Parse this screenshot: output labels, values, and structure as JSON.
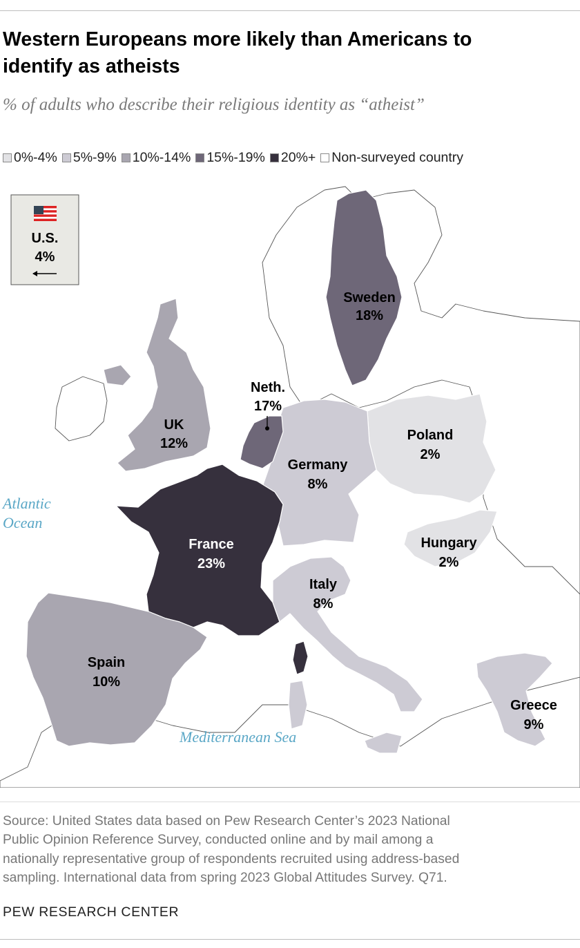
{
  "title_lines": [
    "Western Europeans more likely than Americans to",
    "identify as atheists"
  ],
  "subtitle": "% of adults who describe their religious identity as “atheist”",
  "legend": [
    {
      "label": "0%-4%",
      "color": "#e2e2e5"
    },
    {
      "label": "5%-9%",
      "color": "#cdcbd4"
    },
    {
      "label": "10%-14%",
      "color": "#a9a6b0"
    },
    {
      "label": "15%-19%",
      "color": "#6e6778"
    },
    {
      "label": "20%+",
      "color": "#36303d"
    },
    {
      "label": "Non-surveyed country",
      "color": "#ffffff"
    }
  ],
  "inset": {
    "flag_icon": "us-flag-icon",
    "country": "U.S.",
    "value": "4%",
    "arrow_icon": "left-arrow-icon"
  },
  "countries": [
    {
      "name": "Sweden",
      "value": "18%",
      "bin": "15%-19%"
    },
    {
      "name": "Neth.",
      "value": "17%",
      "bin": "15%-19%"
    },
    {
      "name": "UK",
      "value": "12%",
      "bin": "10%-14%"
    },
    {
      "name": "Poland",
      "value": "2%",
      "bin": "0%-4%"
    },
    {
      "name": "Germany",
      "value": "8%",
      "bin": "5%-9%"
    },
    {
      "name": "France",
      "value": "23%",
      "bin": "20%+"
    },
    {
      "name": "Hungary",
      "value": "2%",
      "bin": "0%-4%"
    },
    {
      "name": "Italy",
      "value": "8%",
      "bin": "5%-9%"
    },
    {
      "name": "Spain",
      "value": "10%",
      "bin": "10%-14%"
    },
    {
      "name": "Greece",
      "value": "9%",
      "bin": "5%-9%"
    }
  ],
  "oceans": {
    "atlantic": [
      "Atlantic",
      "Ocean"
    ],
    "mediterranean": "Mediterranean Sea"
  },
  "source_lines": [
    "Source: United States data based on Pew Research Center’s 2023 National",
    "Public Opinion Reference Survey, conducted online and by mail among a",
    "nationally representative group of respondents recruited using address-based",
    "sampling. International data from spring 2023 Global Attitudes Survey. Q71."
  ],
  "footer": "PEW RESEARCH CENTER"
}
